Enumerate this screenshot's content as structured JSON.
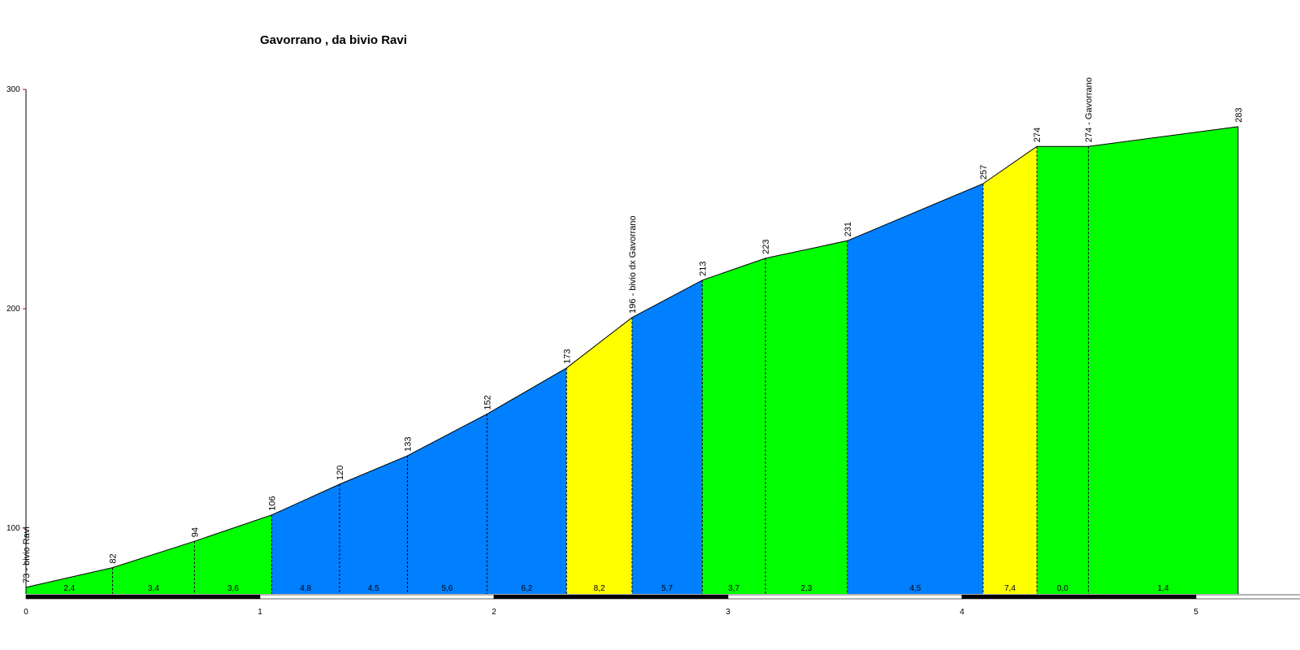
{
  "chart_data": {
    "type": "area",
    "title": "Gavorrano , da bivio Ravi",
    "xlabel": "",
    "ylabel": "",
    "xlim": [
      0,
      5.5
    ],
    "ylim": [
      70,
      300
    ],
    "x_ticks": [
      "0",
      "1",
      "2",
      "3",
      "4",
      "5"
    ],
    "y_ticks": [
      "100",
      "200",
      "300"
    ],
    "points": [
      {
        "km": 0.0,
        "elev": 73,
        "label": "73 - bivio Ravi"
      },
      {
        "km": 0.37,
        "elev": 82,
        "label": "82"
      },
      {
        "km": 0.72,
        "elev": 94,
        "label": "94"
      },
      {
        "km": 1.05,
        "elev": 106,
        "label": "106"
      },
      {
        "km": 1.34,
        "elev": 120,
        "label": "120"
      },
      {
        "km": 1.63,
        "elev": 133,
        "label": "133"
      },
      {
        "km": 1.97,
        "elev": 152,
        "label": "152"
      },
      {
        "km": 2.31,
        "elev": 173,
        "label": "173"
      },
      {
        "km": 2.59,
        "elev": 196,
        "label": "196 - bivio dx Gavorrano"
      },
      {
        "km": 2.89,
        "elev": 213,
        "label": "213"
      },
      {
        "km": 3.16,
        "elev": 223,
        "label": "223"
      },
      {
        "km": 3.51,
        "elev": 231,
        "label": "231"
      },
      {
        "km": 4.09,
        "elev": 257,
        "label": "257"
      },
      {
        "km": 4.32,
        "elev": 274,
        "label": "274"
      },
      {
        "km": 4.54,
        "elev": 274,
        "label": "274 - Gavorrano"
      },
      {
        "km": 5.18,
        "elev": 283,
        "label": "283"
      }
    ],
    "segments": [
      {
        "gradient": "2,4",
        "color": "#00ff00"
      },
      {
        "gradient": "3,4",
        "color": "#00ff00"
      },
      {
        "gradient": "3,6",
        "color": "#00ff00"
      },
      {
        "gradient": "4,8",
        "color": "#0080ff"
      },
      {
        "gradient": "4,5",
        "color": "#0080ff"
      },
      {
        "gradient": "5,6",
        "color": "#0080ff"
      },
      {
        "gradient": "6,2",
        "color": "#0080ff"
      },
      {
        "gradient": "8,2",
        "color": "#ffff00"
      },
      {
        "gradient": "5,7",
        "color": "#0080ff"
      },
      {
        "gradient": "3,7",
        "color": "#00ff00"
      },
      {
        "gradient": "2,3",
        "color": "#00ff00"
      },
      {
        "gradient": "4,5",
        "color": "#0080ff"
      },
      {
        "gradient": "7,4",
        "color": "#ffff00"
      },
      {
        "gradient": "0,0",
        "color": "#00ff00"
      },
      {
        "gradient": "1,4",
        "color": "#00ff00"
      }
    ],
    "grid": false,
    "legend": "none"
  }
}
